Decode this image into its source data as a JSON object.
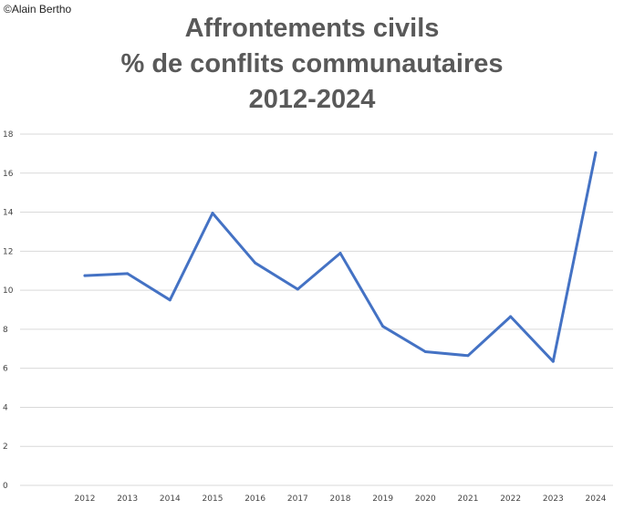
{
  "header": {
    "credit": "©Alain Bertho",
    "title_lines": [
      "Affrontements civils",
      "% de conflits communautaires",
      "2012-2024"
    ]
  },
  "chart_data": {
    "type": "line",
    "title": "Affrontements civils % de conflits communautaires 2012-2024",
    "xlabel": "",
    "ylabel": "",
    "categories": [
      "2012",
      "2013",
      "2014",
      "2015",
      "2016",
      "2017",
      "2018",
      "2019",
      "2020",
      "2021",
      "2022",
      "2023",
      "2024"
    ],
    "series": [
      {
        "color": "#4472c4",
        "values": [
          10.75,
          10.85,
          9.5,
          13.95,
          11.4,
          10.05,
          11.9,
          8.15,
          6.85,
          6.65,
          8.65,
          6.35,
          17.05
        ]
      }
    ],
    "ylim": [
      0,
      18
    ],
    "yticks": [
      0,
      2,
      4,
      6,
      8,
      10,
      12,
      14,
      16,
      18
    ],
    "grid": true,
    "legend": "none"
  }
}
